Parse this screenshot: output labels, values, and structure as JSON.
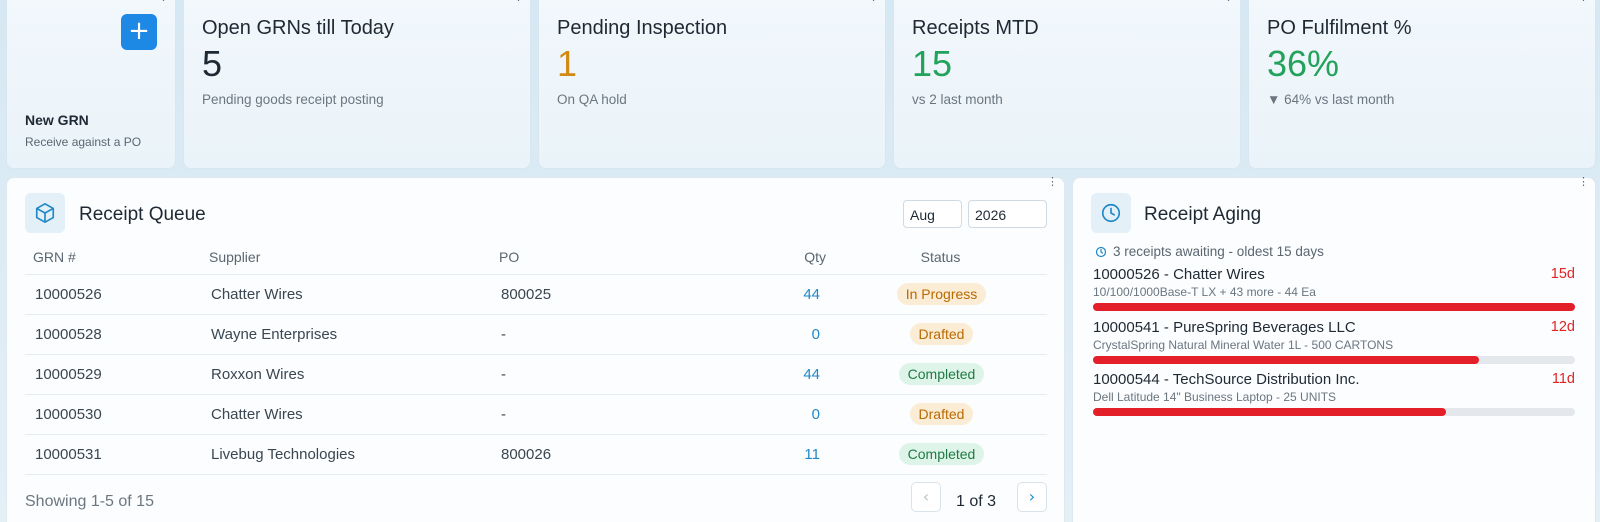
{
  "new_grn": {
    "label": "New GRN",
    "sub": "Receive against a PO",
    "plus": "+"
  },
  "kpis": {
    "open": {
      "title": "Open GRNs till Today",
      "value": "5",
      "sub": "Pending goods receipt posting",
      "color": "#1f2933"
    },
    "pending": {
      "title": "Pending Inspection",
      "value": "1",
      "sub": "On QA hold",
      "color": "#d18a12"
    },
    "receipts": {
      "title": "Receipts MTD",
      "value": "15",
      "sub": "vs 2 last month",
      "color": "#22a25a"
    },
    "po": {
      "title": "PO Fulfilment %",
      "value": "36%",
      "sub": "▼ 64% vs last month",
      "color": "#22a25a"
    }
  },
  "queue": {
    "title": "Receipt Queue",
    "month": "Aug",
    "year": "2026",
    "headers": {
      "grn": "GRN #",
      "supplier": "Supplier",
      "po": "PO",
      "qty": "Qty",
      "status": "Status"
    },
    "rows": [
      {
        "grn": "10000526",
        "supplier": "Chatter Wires",
        "po": "800025",
        "qty": "44",
        "status": "In Progress"
      },
      {
        "grn": "10000528",
        "supplier": "Wayne Enterprises",
        "po": "-",
        "qty": "0",
        "status": "Drafted"
      },
      {
        "grn": "10000529",
        "supplier": "Roxxon Wires",
        "po": "-",
        "qty": "44",
        "status": "Completed"
      },
      {
        "grn": "10000530",
        "supplier": "Chatter Wires",
        "po": "-",
        "qty": "0",
        "status": "Drafted"
      },
      {
        "grn": "10000531",
        "supplier": "Livebug Technologies",
        "po": "800026",
        "qty": "11",
        "status": "Completed"
      }
    ],
    "showing": "Showing 1-5 of 15",
    "page": "1 of 3",
    "prev": "‹",
    "next": "›"
  },
  "aging": {
    "title": "Receipt Aging",
    "summary": "3 receipts awaiting - oldest 15 days",
    "items": [
      {
        "name": "10000526 - Chatter Wires",
        "desc": "10/100/1000Base-T LX + 43 more - 44 Ea",
        "days": "15d",
        "fill": 1.0
      },
      {
        "name": "10000541 - PureSpring Beverages LLC",
        "desc": "CrystalSpring Natural Mineral Water 1L - 500 CARTONS",
        "days": "12d",
        "fill": 0.8
      },
      {
        "name": "10000544 - TechSource Distribution Inc.",
        "desc": "Dell Latitude 14\" Business Laptop - 25 UNITS",
        "days": "11d",
        "fill": 0.733
      }
    ]
  }
}
